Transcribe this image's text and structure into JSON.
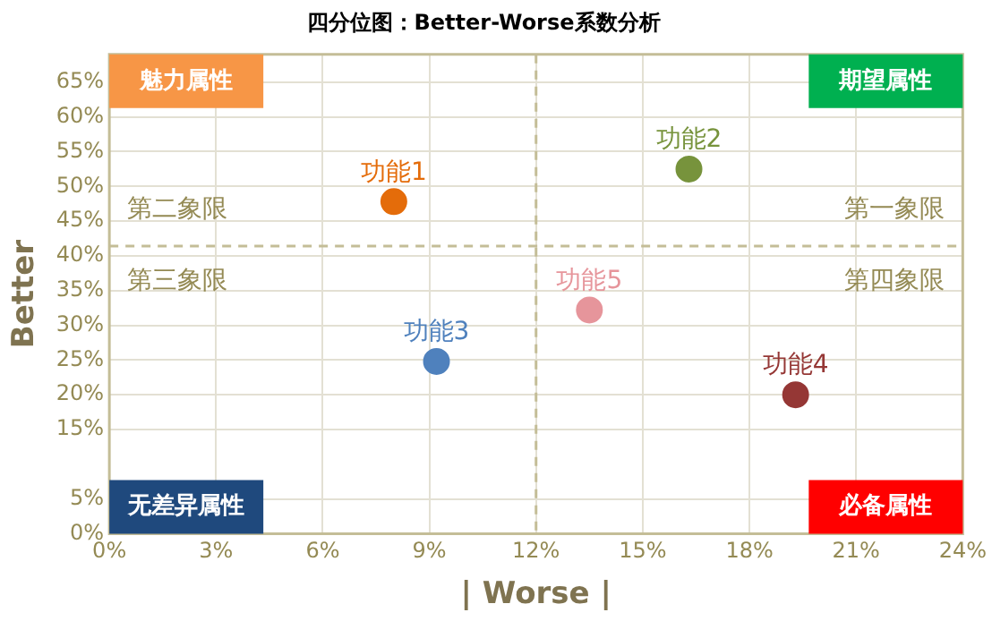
{
  "chart_data": {
    "type": "scatter",
    "title": "四分位图：Better-Worse系数分析",
    "xlabel": "| Worse |",
    "ylabel": "Better",
    "xlim": [
      0,
      24
    ],
    "xticks": [
      {
        "value": 0,
        "label": "0%"
      },
      {
        "value": 3,
        "label": "3%"
      },
      {
        "value": 6,
        "label": "6%"
      },
      {
        "value": 9,
        "label": "9%"
      },
      {
        "value": 12,
        "label": "12%"
      },
      {
        "value": 15,
        "label": "15%"
      },
      {
        "value": 18,
        "label": "18%"
      },
      {
        "value": 21,
        "label": "21%"
      },
      {
        "value": 24,
        "label": "24%"
      }
    ],
    "ylim": [
      0,
      69
    ],
    "yticks": [
      {
        "value": 0,
        "label": "0%"
      },
      {
        "value": 5,
        "label": "5%"
      },
      {
        "value": 15,
        "label": "15%"
      },
      {
        "value": 20,
        "label": "20%"
      },
      {
        "value": 25,
        "label": "25%"
      },
      {
        "value": 30,
        "label": "30%"
      },
      {
        "value": 35,
        "label": "35%"
      },
      {
        "value": 40,
        "label": "40%"
      },
      {
        "value": 45,
        "label": "45%"
      },
      {
        "value": 50,
        "label": "50%"
      },
      {
        "value": 55,
        "label": "55%"
      },
      {
        "value": 60,
        "label": "60%"
      },
      {
        "value": 65,
        "label": "65%"
      }
    ],
    "grid": true,
    "legend": false,
    "marker": "circle",
    "series": [
      {
        "name": "功能1",
        "color": "#e46c0a",
        "x": [
          8.0
        ],
        "values": [
          47.8
        ]
      },
      {
        "name": "功能2",
        "color": "#77933c",
        "x": [
          16.3
        ],
        "values": [
          52.5
        ]
      },
      {
        "name": "功能3",
        "color": "#4f81bd",
        "x": [
          9.2
        ],
        "values": [
          24.8
        ]
      },
      {
        "name": "功能4",
        "color": "#953735",
        "x": [
          19.3
        ],
        "values": [
          20
        ]
      },
      {
        "name": "功能5",
        "color": "#e6959b",
        "x": [
          13.5
        ],
        "values": [
          32.2
        ]
      }
    ],
    "ref_lines": [
      {
        "axis": "x",
        "value": 12,
        "color": "#c4bd97",
        "line_style": "dashed"
      },
      {
        "axis": "y",
        "value": 41.4,
        "color": "#c4bd97",
        "line_style": "dashed"
      }
    ],
    "annotations": [
      "魅力属性",
      "期望属性",
      "无差异属性",
      "必备属性",
      "第二象限",
      "第一象限",
      "第三象限",
      "第四象限"
    ]
  }
}
